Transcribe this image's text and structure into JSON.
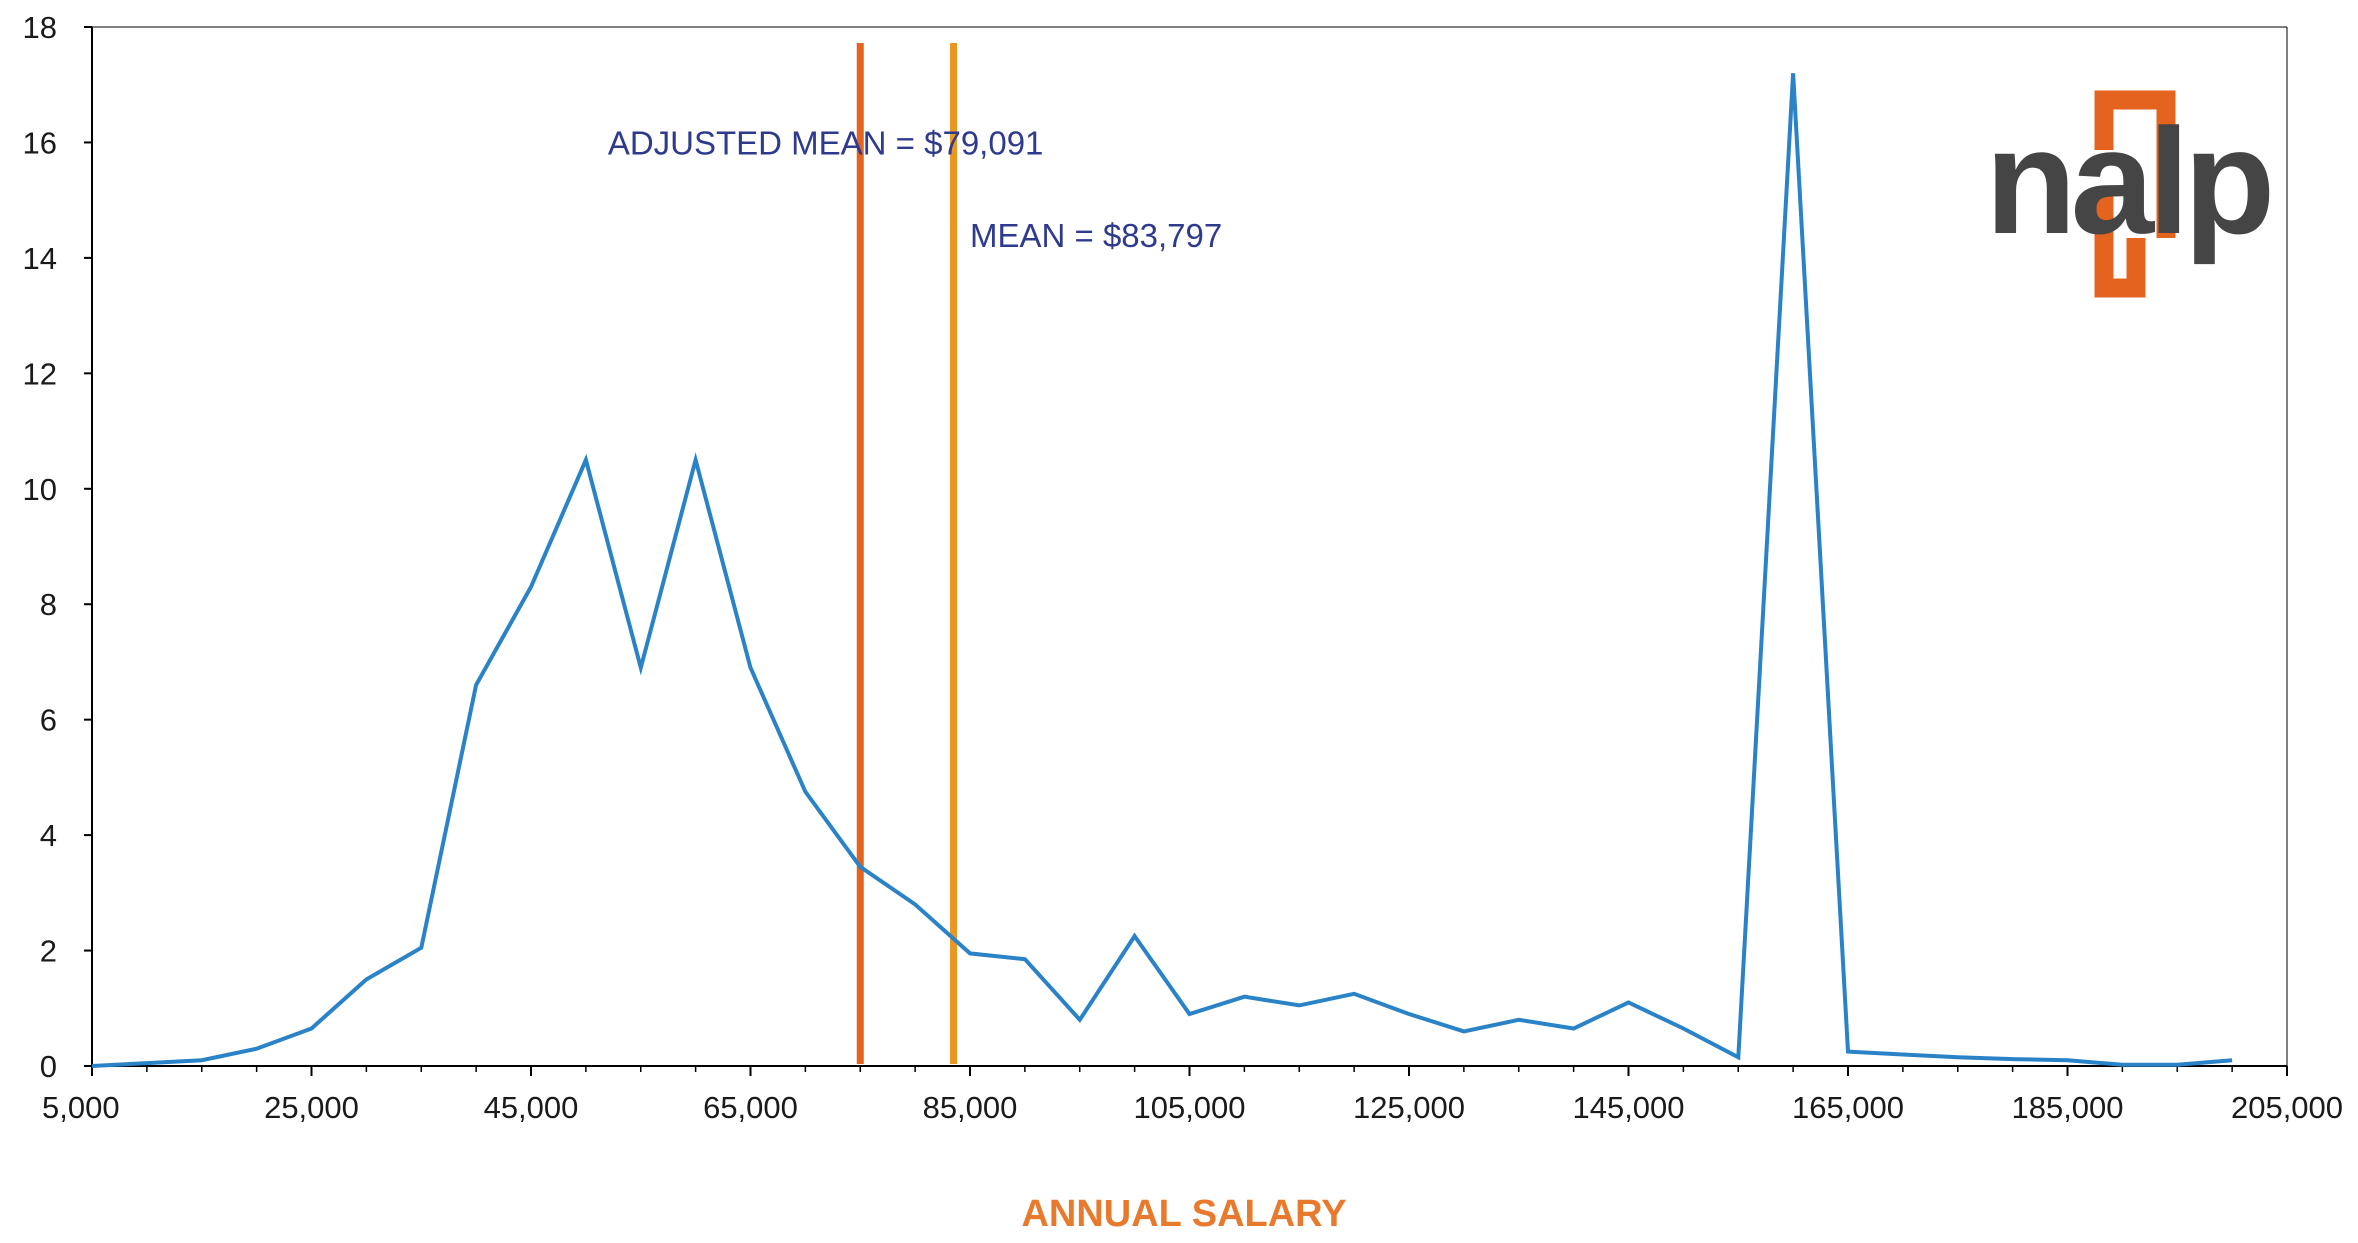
{
  "chart_data": {
    "type": "line",
    "title": "",
    "xlabel": "ANNUAL SALARY",
    "ylabel": "",
    "xlim": [
      5000,
      205000
    ],
    "ylim": [
      0,
      18
    ],
    "x_ticks": [
      "5,000",
      "25,000",
      "45,000",
      "65,000",
      "85,000",
      "105,000",
      "125,000",
      "145,000",
      "165,000",
      "185,000",
      "205,000"
    ],
    "y_ticks": [
      "0",
      "2",
      "4",
      "6",
      "8",
      "10",
      "12",
      "14",
      "16",
      "18"
    ],
    "grid": false,
    "legend": "none",
    "series": [
      {
        "x": [
          5000,
          10000,
          15000,
          20000,
          25000,
          30000,
          35000,
          40000,
          45000,
          50000,
          55000,
          60000,
          65000,
          70000,
          75000,
          80000,
          85000,
          90000,
          95000,
          100000,
          105000,
          110000,
          115000,
          120000,
          125000,
          130000,
          135000,
          140000,
          145000,
          150000,
          155000,
          160000,
          165000,
          170000,
          175000,
          180000,
          185000,
          190000,
          195000,
          200000
        ],
        "y": [
          0.0,
          0.05,
          0.1,
          0.3,
          0.65,
          1.5,
          2.05,
          6.6,
          8.3,
          10.5,
          6.9,
          10.5,
          6.9,
          4.75,
          3.45,
          2.8,
          1.95,
          1.85,
          0.8,
          2.25,
          0.9,
          1.2,
          1.05,
          1.25,
          0.9,
          0.6,
          0.8,
          0.65,
          1.1,
          0.65,
          0.15,
          17.2,
          0.25,
          0.2,
          0.15,
          0.12,
          0.1,
          0.02,
          0.02,
          0.1
        ]
      }
    ],
    "vlines": [
      {
        "x": 75000,
        "color": "#e4631e"
      },
      {
        "x": 83500,
        "color": "#ec9622"
      }
    ],
    "annotations": [
      {
        "text": "ADJUSTED MEAN = $79,091",
        "x": 52000,
        "y": 16
      },
      {
        "text": "MEAN = $83,797",
        "x": 85000,
        "y": 14.4
      }
    ],
    "colors": {
      "line": "#2a82c7",
      "axis": "#000000",
      "xlabel": "#e87a2e",
      "annotation": "#2e3a8c"
    }
  },
  "logo": {
    "text": "nalp",
    "text_color": "#454545",
    "bracket_color": "#e4631e"
  }
}
